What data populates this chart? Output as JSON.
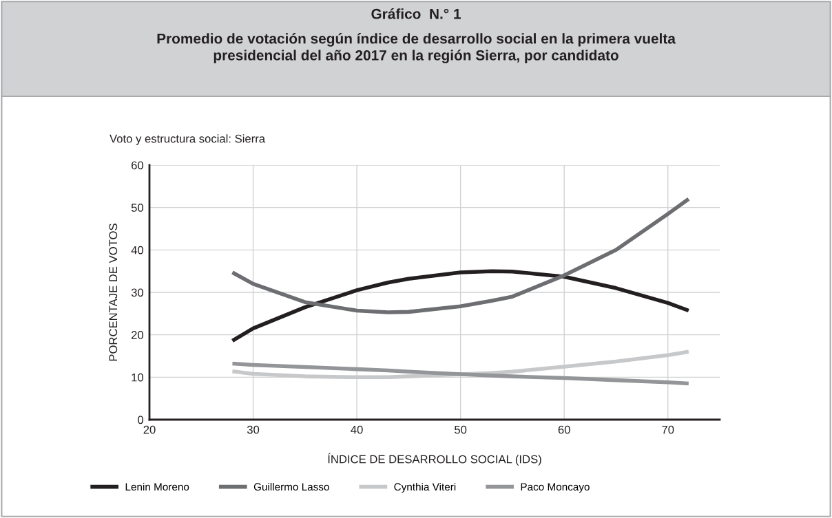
{
  "chart_data": {
    "type": "line",
    "title": "Gráfico  N.° 1",
    "subtitle": "Promedio de votación según índice de desarrollo social en la primera vuelta\npresidencial del año 2017 en la región Sierra, por candidato",
    "annotations": [
      "Voto y estructura social: Sierra"
    ],
    "xlabel": "ÍNDICE DE DESARROLLO SOCIAL (IDS)",
    "ylabel": "PORCENTAJE DE VOTOS",
    "x": [
      28,
      30,
      35,
      40,
      43,
      45,
      50,
      53,
      55,
      60,
      65,
      70,
      72
    ],
    "series": [
      {
        "name": "Lenin Moreno",
        "color": "#231f20",
        "values": [
          18.6,
          21.5,
          26.5,
          30.5,
          32.3,
          33.2,
          34.7,
          35,
          34.9,
          33.7,
          31,
          27.5,
          25.7
        ]
      },
      {
        "name": "Guillermo Lasso",
        "color": "#6d6e71",
        "values": [
          34.7,
          32,
          27.7,
          25.7,
          25.3,
          25.4,
          26.7,
          28,
          29,
          34,
          40,
          48.5,
          52
        ]
      },
      {
        "name": "Cynthia Viteri",
        "color": "#c7c8ca",
        "values": [
          11.4,
          10.8,
          10.2,
          10,
          10,
          10.2,
          10.7,
          11,
          11.3,
          12.5,
          13.7,
          15.2,
          16
        ]
      },
      {
        "name": "Paco Moncayo",
        "color": "#939598",
        "values": [
          13.2,
          12.9,
          12.4,
          11.9,
          11.6,
          11.3,
          10.7,
          10.4,
          10.2,
          9.8,
          9.3,
          8.8,
          8.5
        ]
      }
    ],
    "xlim": [
      20,
      75
    ],
    "xticks": [
      20,
      30,
      40,
      50,
      60,
      70
    ],
    "ylim": [
      0,
      60
    ],
    "yticks": [
      0,
      10,
      20,
      30,
      40,
      50,
      60
    ],
    "grid": true,
    "legend": "bottom",
    "marker": "none",
    "line_style": "solid"
  }
}
